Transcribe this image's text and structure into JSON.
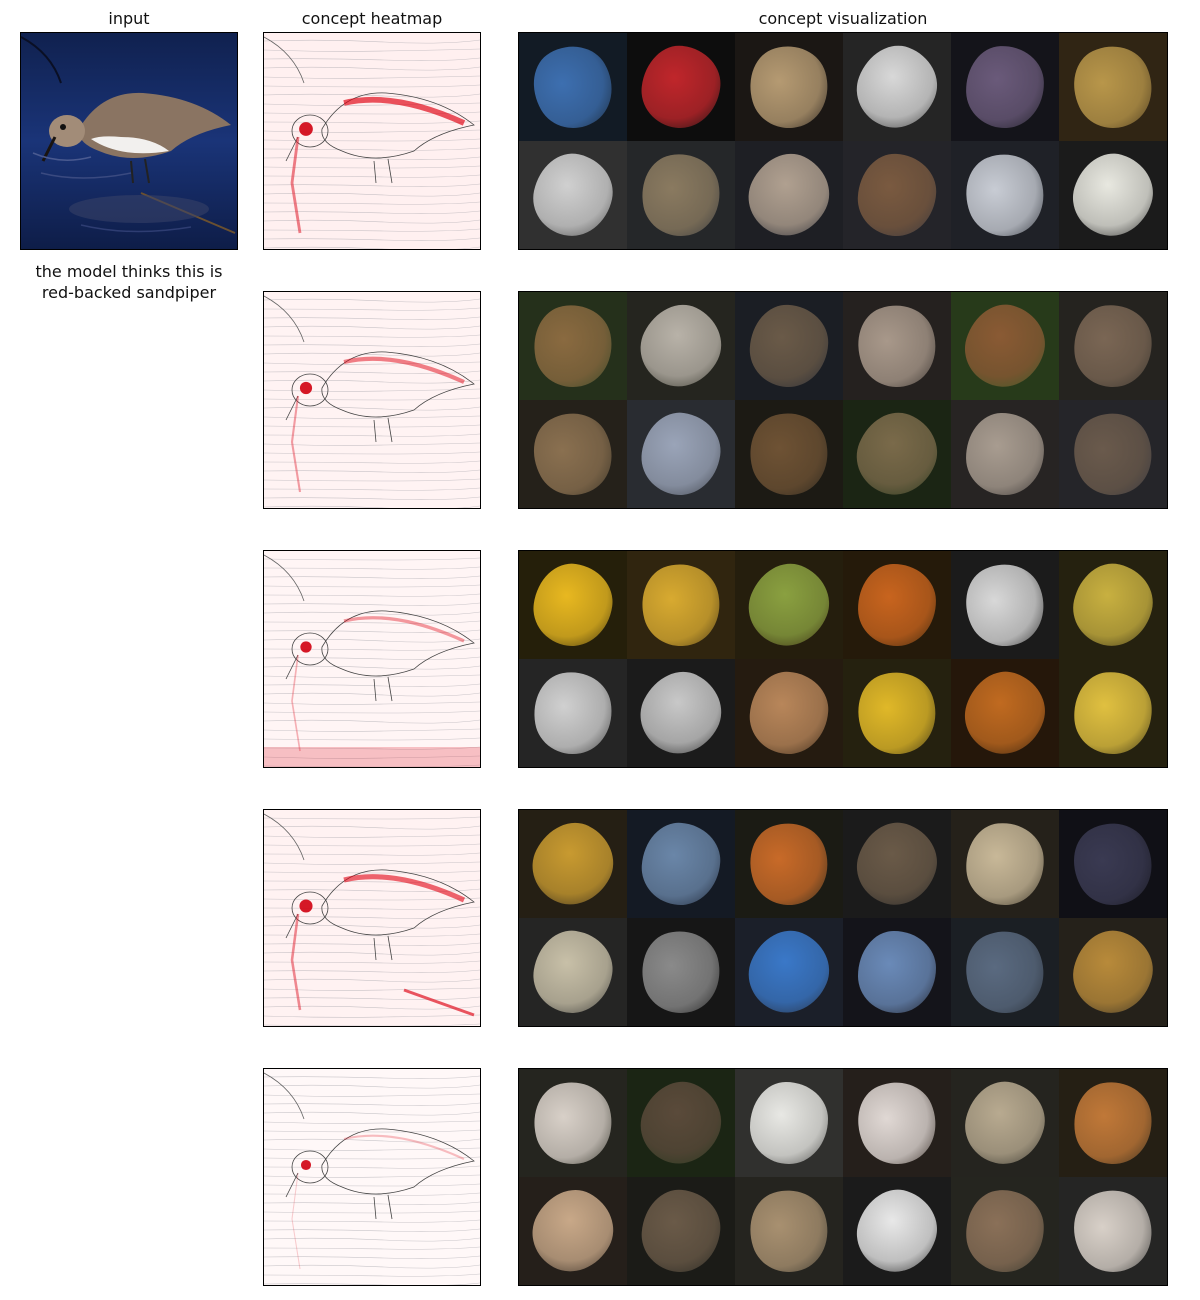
{
  "headers": {
    "input": "input",
    "heatmap": "concept heatmap",
    "visualization": "concept visualization"
  },
  "prediction": {
    "line1": "the model thinks this is",
    "line2": "red-backed sandpiper"
  },
  "concepts": [
    {
      "tiles": [
        {
          "bg": "#1c2a3a",
          "fg": "#3d6fb0"
        },
        {
          "bg": "#141414",
          "fg": "#c0262b"
        },
        {
          "bg": "#2a2420",
          "fg": "#b59a72"
        },
        {
          "bg": "#3a3a3a",
          "fg": "#d8d8d8"
        },
        {
          "bg": "#202028",
          "fg": "#6a5a7a"
        },
        {
          "bg": "#4a3a20",
          "fg": "#b8964a"
        },
        {
          "bg": "#4a4a4a",
          "fg": "#d0d0d0"
        },
        {
          "bg": "#3a3c40",
          "fg": "#8a7a60"
        },
        {
          "bg": "#2e3038",
          "fg": "#b0a090"
        },
        {
          "bg": "#383840",
          "fg": "#7a5a40"
        },
        {
          "bg": "#30343c",
          "fg": "#c8ccd4"
        },
        {
          "bg": "#2a2a2a",
          "fg": "#e8e8e0"
        }
      ]
    },
    {
      "tiles": [
        {
          "bg": "#3a4a2a",
          "fg": "#8a6a40"
        },
        {
          "bg": "#3a3a30",
          "fg": "#b8b2a8"
        },
        {
          "bg": "#2a2e38",
          "fg": "#6a5a48"
        },
        {
          "bg": "#3a3430",
          "fg": "#a8988a"
        },
        {
          "bg": "#3c5a28",
          "fg": "#8a5a34"
        },
        {
          "bg": "#3a3630",
          "fg": "#7a6654"
        },
        {
          "bg": "#3a3428",
          "fg": "#8a7050"
        },
        {
          "bg": "#40444c",
          "fg": "#9aa4b8"
        },
        {
          "bg": "#2c2820",
          "fg": "#6e5234"
        },
        {
          "bg": "#2a3a20",
          "fg": "#7a6a4a"
        },
        {
          "bg": "#3c3836",
          "fg": "#a89c90"
        },
        {
          "bg": "#3a3a40",
          "fg": "#6a5a4c"
        }
      ]
    },
    {
      "tiles": [
        {
          "bg": "#3a3010",
          "fg": "#e8b820"
        },
        {
          "bg": "#4a3a18",
          "fg": "#d8aa30"
        },
        {
          "bg": "#3a2e14",
          "fg": "#8aa040"
        },
        {
          "bg": "#3a2810",
          "fg": "#c8641e"
        },
        {
          "bg": "#2a2a2a",
          "fg": "#d8d8d8"
        },
        {
          "bg": "#3a3418",
          "fg": "#c8b040"
        },
        {
          "bg": "#3a3a3a",
          "fg": "#d0d0d0"
        },
        {
          "bg": "#2a2a2a",
          "fg": "#c8c8c8"
        },
        {
          "bg": "#3a2a1a",
          "fg": "#b8865a"
        },
        {
          "bg": "#3a3418",
          "fg": "#e0b828"
        },
        {
          "bg": "#3a2410",
          "fg": "#c06a20"
        },
        {
          "bg": "#3a3418",
          "fg": "#e0c040"
        }
      ]
    },
    {
      "tiles": [
        {
          "bg": "#3a3020",
          "fg": "#c89a30"
        },
        {
          "bg": "#202838",
          "fg": "#6a86a8"
        },
        {
          "bg": "#2a2a20",
          "fg": "#c86a28"
        },
        {
          "bg": "#2a2a2a",
          "fg": "#6a5a48"
        },
        {
          "bg": "#3a3428",
          "fg": "#c8b898"
        },
        {
          "bg": "#1a1a22",
          "fg": "#3a3a52"
        },
        {
          "bg": "#3a3a38",
          "fg": "#c8c0a8"
        },
        {
          "bg": "#222222",
          "fg": "#8a8a8a"
        },
        {
          "bg": "#2a3040",
          "fg": "#3a78c8"
        },
        {
          "bg": "#202028",
          "fg": "#6a8ab8"
        },
        {
          "bg": "#2a3038",
          "fg": "#5a6a80"
        },
        {
          "bg": "#3a3428",
          "fg": "#b88a3a"
        }
      ]
    },
    {
      "tiles": [
        {
          "bg": "#3a3a30",
          "fg": "#d8d0c8"
        },
        {
          "bg": "#2a3a20",
          "fg": "#5a4a3a"
        },
        {
          "bg": "#4a4a48",
          "fg": "#e8e8e4"
        },
        {
          "bg": "#3a302a",
          "fg": "#e0d8d4"
        },
        {
          "bg": "#3a3830",
          "fg": "#b8aa90"
        },
        {
          "bg": "#3a3020",
          "fg": "#c07838"
        },
        {
          "bg": "#3a3028",
          "fg": "#c8a888"
        },
        {
          "bg": "#2a2a24",
          "fg": "#6a5a48"
        },
        {
          "bg": "#3a3830",
          "fg": "#a89070"
        },
        {
          "bg": "#2a2a2a",
          "fg": "#e8e8e8"
        },
        {
          "bg": "#3a3a30",
          "fg": "#8a7058"
        },
        {
          "bg": "#3a3a38",
          "fg": "#d8d0c8"
        }
      ]
    }
  ]
}
